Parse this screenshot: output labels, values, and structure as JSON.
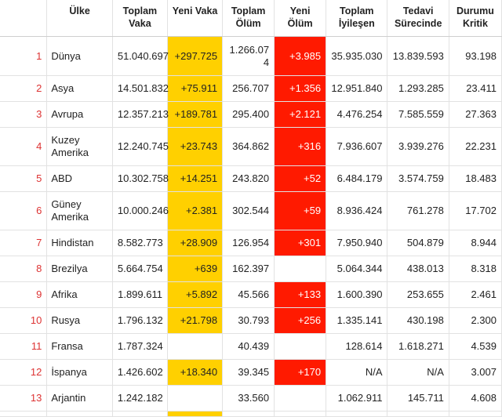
{
  "headers": {
    "rank": "",
    "country": "Ülke",
    "total_cases": "Toplam Vaka",
    "new_cases": "Yeni Vaka",
    "total_deaths": "Toplam Ölüm",
    "new_deaths": "Yeni Ölüm",
    "total_recovered": "Toplam İyileşen",
    "active": "Tedavi Sürecinde",
    "critical": "Durumu Kritik"
  },
  "rows": [
    {
      "rank": "1",
      "country": "Dünya",
      "total_cases": "51.040.697",
      "new_cases": "+297.725",
      "total_deaths": "1.266.074",
      "new_deaths": "+3.985",
      "total_recovered": "35.935.030",
      "active": "13.839.593",
      "critical": "93.198"
    },
    {
      "rank": "2",
      "country": "Asya",
      "total_cases": "14.501.832",
      "new_cases": "+75.911",
      "total_deaths": "256.707",
      "new_deaths": "+1.356",
      "total_recovered": "12.951.840",
      "active": "1.293.285",
      "critical": "23.411"
    },
    {
      "rank": "3",
      "country": "Avrupa",
      "total_cases": "12.357.213",
      "new_cases": "+189.781",
      "total_deaths": "295.400",
      "new_deaths": "+2.121",
      "total_recovered": "4.476.254",
      "active": "7.585.559",
      "critical": "27.363"
    },
    {
      "rank": "4",
      "country": "Kuzey Amerika",
      "total_cases": "12.240.745",
      "new_cases": "+23.743",
      "total_deaths": "364.862",
      "new_deaths": "+316",
      "total_recovered": "7.936.607",
      "active": "3.939.276",
      "critical": "22.231"
    },
    {
      "rank": "5",
      "country": "ABD",
      "total_cases": "10.302.758",
      "new_cases": "+14.251",
      "total_deaths": "243.820",
      "new_deaths": "+52",
      "total_recovered": "6.484.179",
      "active": "3.574.759",
      "critical": "18.483"
    },
    {
      "rank": "6",
      "country": "Güney Amerika",
      "total_cases": "10.000.246",
      "new_cases": "+2.381",
      "total_deaths": "302.544",
      "new_deaths": "+59",
      "total_recovered": "8.936.424",
      "active": "761.278",
      "critical": "17.702"
    },
    {
      "rank": "7",
      "country": "Hindistan",
      "total_cases": "8.582.773",
      "new_cases": "+28.909",
      "total_deaths": "126.954",
      "new_deaths": "+301",
      "total_recovered": "7.950.940",
      "active": "504.879",
      "critical": "8.944"
    },
    {
      "rank": "8",
      "country": "Brezilya",
      "total_cases": "5.664.754",
      "new_cases": "+639",
      "total_deaths": "162.397",
      "new_deaths": "",
      "total_recovered": "5.064.344",
      "active": "438.013",
      "critical": "8.318"
    },
    {
      "rank": "9",
      "country": "Afrika",
      "total_cases": "1.899.611",
      "new_cases": "+5.892",
      "total_deaths": "45.566",
      "new_deaths": "+133",
      "total_recovered": "1.600.390",
      "active": "253.655",
      "critical": "2.461"
    },
    {
      "rank": "10",
      "country": "Rusya",
      "total_cases": "1.796.132",
      "new_cases": "+21.798",
      "total_deaths": "30.793",
      "new_deaths": "+256",
      "total_recovered": "1.335.141",
      "active": "430.198",
      "critical": "2.300"
    },
    {
      "rank": "11",
      "country": "Fransa",
      "total_cases": "1.787.324",
      "new_cases": "",
      "total_deaths": "40.439",
      "new_deaths": "",
      "total_recovered": "128.614",
      "active": "1.618.271",
      "critical": "4.539"
    },
    {
      "rank": "12",
      "country": "İspanya",
      "total_cases": "1.426.602",
      "new_cases": "+18.340",
      "total_deaths": "39.345",
      "new_deaths": "+170",
      "total_recovered": "N/A",
      "active": "N/A",
      "critical": "3.007"
    },
    {
      "rank": "13",
      "country": "Arjantin",
      "total_cases": "1.242.182",
      "new_cases": "",
      "total_deaths": "33.560",
      "new_deaths": "",
      "total_recovered": "1.062.911",
      "active": "145.711",
      "critical": "4.608"
    }
  ],
  "colors": {
    "new_cases_highlight": "#ffd000",
    "new_deaths_highlight": "#ff1a00",
    "rank_text": "#dd3333"
  }
}
